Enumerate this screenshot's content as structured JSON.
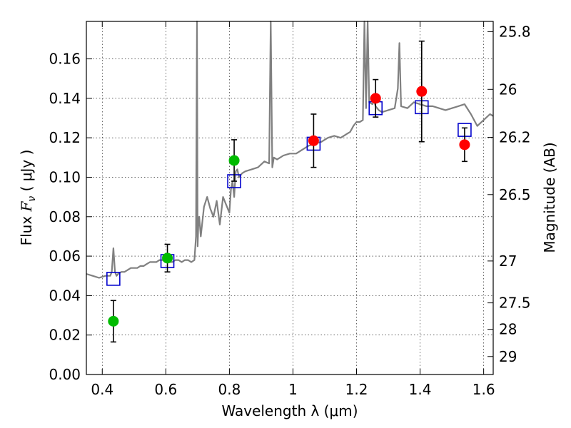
{
  "chart_data": {
    "type": "scatter",
    "xlabel": "Wavelength  λ (μm)",
    "ylabel_left": {
      "prefix": "Flux  ",
      "symbol": "F",
      "subscript": "ν",
      "units": "  ( μJy )"
    },
    "ylabel_right": "Magnitude (AB)",
    "xlim": [
      0.35,
      1.63
    ],
    "ylim": [
      0.0,
      0.179
    ],
    "grid": true,
    "x_ticks": [
      {
        "v": 0.4,
        "label": "0.4"
      },
      {
        "v": 0.6,
        "label": "0.6"
      },
      {
        "v": 0.8,
        "label": "0.8"
      },
      {
        "v": 1.0,
        "label": "1"
      },
      {
        "v": 1.2,
        "label": "1.2"
      },
      {
        "v": 1.4,
        "label": "1.4"
      },
      {
        "v": 1.6,
        "label": "1.6"
      }
    ],
    "y_ticks": [
      {
        "v": 0.0,
        "label": "0.00"
      },
      {
        "v": 0.02,
        "label": "0.02"
      },
      {
        "v": 0.04,
        "label": "0.04"
      },
      {
        "v": 0.06,
        "label": "0.06"
      },
      {
        "v": 0.08,
        "label": "0.08"
      },
      {
        "v": 0.1,
        "label": "0.10"
      },
      {
        "v": 0.12,
        "label": "0.12"
      },
      {
        "v": 0.14,
        "label": "0.14"
      },
      {
        "v": 0.16,
        "label": "0.16"
      }
    ],
    "right_ticks": [
      {
        "mag": 25.8,
        "label": "25.8"
      },
      {
        "mag": 26,
        "label": "26"
      },
      {
        "mag": 26.2,
        "label": "26.2"
      },
      {
        "mag": 26.5,
        "label": "26.5"
      },
      {
        "mag": 27,
        "label": "27"
      },
      {
        "mag": 27.5,
        "label": "27.5"
      },
      {
        "mag": 28,
        "label": "28"
      },
      {
        "mag": 29,
        "label": "29"
      }
    ],
    "model_spectrum": {
      "color": "#808080",
      "x": [
        0.35,
        0.37,
        0.39,
        0.41,
        0.425,
        0.43,
        0.435,
        0.44,
        0.445,
        0.45,
        0.46,
        0.47,
        0.48,
        0.49,
        0.5,
        0.51,
        0.52,
        0.53,
        0.54,
        0.55,
        0.56,
        0.57,
        0.58,
        0.59,
        0.6,
        0.61,
        0.62,
        0.63,
        0.64,
        0.65,
        0.66,
        0.67,
        0.68,
        0.69,
        0.695,
        0.698,
        0.7,
        0.702,
        0.705,
        0.71,
        0.72,
        0.73,
        0.74,
        0.75,
        0.76,
        0.77,
        0.78,
        0.79,
        0.8,
        0.805,
        0.81,
        0.815,
        0.82,
        0.825,
        0.83,
        0.84,
        0.85,
        0.87,
        0.89,
        0.91,
        0.925,
        0.93,
        0.935,
        0.94,
        0.95,
        0.97,
        0.99,
        1.01,
        1.03,
        1.05,
        1.07,
        1.09,
        1.11,
        1.13,
        1.15,
        1.17,
        1.18,
        1.19,
        1.2,
        1.21,
        1.22,
        1.225,
        1.23,
        1.235,
        1.24,
        1.25,
        1.255,
        1.26,
        1.27,
        1.28,
        1.3,
        1.32,
        1.33,
        1.335,
        1.34,
        1.36,
        1.38,
        1.4,
        1.42,
        1.44,
        1.46,
        1.48,
        1.5,
        1.52,
        1.54,
        1.56,
        1.58,
        1.6,
        1.62,
        1.63
      ],
      "y": [
        0.051,
        0.05,
        0.049,
        0.05,
        0.05,
        0.052,
        0.064,
        0.052,
        0.05,
        0.051,
        0.052,
        0.052,
        0.053,
        0.054,
        0.054,
        0.054,
        0.055,
        0.055,
        0.056,
        0.057,
        0.057,
        0.057,
        0.058,
        0.058,
        0.059,
        0.057,
        0.057,
        0.058,
        0.058,
        0.057,
        0.058,
        0.058,
        0.057,
        0.058,
        0.07,
        0.18,
        0.065,
        0.075,
        0.08,
        0.07,
        0.085,
        0.09,
        0.084,
        0.08,
        0.088,
        0.076,
        0.09,
        0.086,
        0.082,
        0.094,
        0.098,
        0.09,
        0.103,
        0.104,
        0.1,
        0.102,
        0.103,
        0.104,
        0.105,
        0.108,
        0.107,
        0.18,
        0.105,
        0.11,
        0.109,
        0.111,
        0.112,
        0.112,
        0.114,
        0.116,
        0.117,
        0.118,
        0.12,
        0.121,
        0.12,
        0.122,
        0.123,
        0.126,
        0.128,
        0.128,
        0.129,
        0.18,
        0.135,
        0.18,
        0.138,
        0.137,
        0.139,
        0.136,
        0.134,
        0.133,
        0.134,
        0.135,
        0.145,
        0.168,
        0.136,
        0.135,
        0.138,
        0.137,
        0.136,
        0.136,
        0.135,
        0.134,
        0.135,
        0.136,
        0.137,
        0.132,
        0.126,
        0.129,
        0.132,
        0.131
      ]
    },
    "series": [
      {
        "marker": "square",
        "color": "#0000cc",
        "x": [
          0.435,
          0.605,
          0.815,
          1.065,
          1.26,
          1.405,
          1.54
        ],
        "y": [
          0.0485,
          0.0575,
          0.098,
          0.117,
          0.135,
          0.1355,
          0.124
        ]
      },
      {
        "marker": "circle",
        "color": "#00bb00",
        "x": [
          0.435,
          0.605,
          0.815
        ],
        "y": [
          0.027,
          0.059,
          0.1085
        ],
        "yerr": [
          0.0105,
          0.007,
          0.0105
        ]
      },
      {
        "marker": "circle",
        "color": "#ff0000",
        "x": [
          1.065,
          1.26,
          1.405,
          1.54
        ],
        "y": [
          0.1185,
          0.14,
          0.1435,
          0.1165
        ],
        "yerr": [
          0.0135,
          0.0095,
          0.0255,
          0.0085
        ]
      }
    ]
  }
}
